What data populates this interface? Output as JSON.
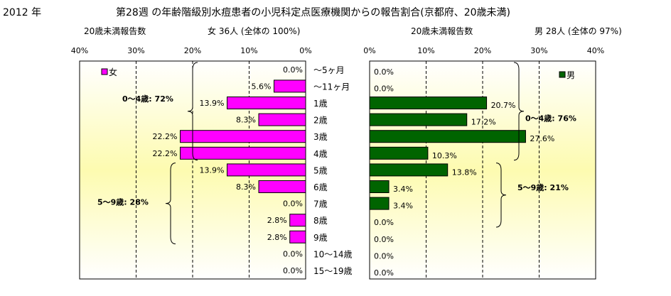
{
  "header": {
    "year": "2012 年",
    "title": "第28週 の年齢階級別水痘患者の小児科定点医療機関からの報告割合(京都府、20歳未満)",
    "left_caption": "20歳未満報告数",
    "left_total": "女  36人 (全体の  100%)",
    "right_caption": "20歳未満報告数",
    "right_total": "男  28人 (全体の  97%)"
  },
  "chart_data": [
    {
      "type": "bar",
      "orientation": "horizontal",
      "direction": "leftward",
      "series": [
        {
          "name": "女",
          "color": "#ff00ff",
          "values": [
            0.0,
            5.6,
            13.9,
            8.3,
            22.2,
            22.2,
            13.9,
            8.3,
            0.0,
            2.8,
            2.8,
            0.0,
            0.0
          ]
        }
      ],
      "categories": [
        "〜5ヶ月",
        "〜11ヶ月",
        "1歳",
        "2歳",
        "3歳",
        "4歳",
        "5歳",
        "6歳",
        "7歳",
        "8歳",
        "9歳",
        "10〜14歳",
        "15〜19歳"
      ],
      "value_labels": [
        "0.0%",
        "5.6%",
        "13.9%",
        "8.3%",
        "22.2%",
        "22.2%",
        "13.9%",
        "8.3%",
        "0.0%",
        "2.8%",
        "2.8%",
        "0.0%",
        "0.0%"
      ],
      "xlim": [
        0,
        40
      ],
      "x_ticks": [
        "40%",
        "30%",
        "20%",
        "10%",
        "0%"
      ],
      "legend": "女",
      "annotations": [
        {
          "text": "0〜4歳: 72%",
          "rows": [
            0,
            5
          ]
        },
        {
          "text": "5〜9歳: 28%",
          "rows": [
            6,
            10
          ]
        }
      ]
    },
    {
      "type": "bar",
      "orientation": "horizontal",
      "direction": "rightward",
      "series": [
        {
          "name": "男",
          "color": "#006400",
          "values": [
            0.0,
            0.0,
            20.7,
            17.2,
            27.6,
            10.3,
            13.8,
            3.4,
            3.4,
            0.0,
            0.0,
            0.0,
            0.0
          ]
        }
      ],
      "categories": [
        "〜5ヶ月",
        "〜11ヶ月",
        "1歳",
        "2歳",
        "3歳",
        "4歳",
        "5歳",
        "6歳",
        "7歳",
        "8歳",
        "9歳",
        "10〜14歳",
        "15〜19歳"
      ],
      "value_labels": [
        "0.0%",
        "0.0%",
        "20.7%",
        "17.2%",
        "27.6%",
        "10.3%",
        "13.8%",
        "3.4%",
        "3.4%",
        "0.0%",
        "0.0%",
        "0.0%",
        "0.0%"
      ],
      "xlim": [
        0,
        40
      ],
      "x_ticks": [
        "0%",
        "10%",
        "20%",
        "30%",
        "40%"
      ],
      "legend": "男",
      "annotations": [
        {
          "text": "0〜4歳: 76%",
          "rows": [
            0,
            5
          ]
        },
        {
          "text": "5〜9歳: 21%",
          "rows": [
            6,
            10
          ]
        }
      ]
    }
  ]
}
